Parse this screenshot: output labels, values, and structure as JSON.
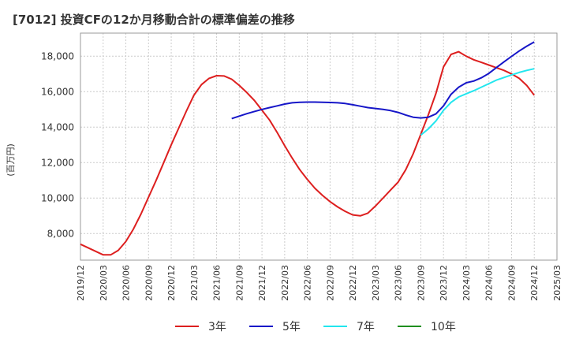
{
  "chart_data": {
    "type": "line",
    "title": "[7012]  投資CFの12か月移動合計の標準偏差の推移",
    "xlabel": "",
    "ylabel": "(百万円)",
    "ylim": [
      6500,
      19300
    ],
    "yticks": [
      8000,
      10000,
      12000,
      14000,
      16000,
      18000
    ],
    "ytick_labels": [
      "8,000",
      "10,000",
      "12,000",
      "14,000",
      "16,000",
      "18,000"
    ],
    "xticks": [
      "2019/12",
      "2020/03",
      "2020/06",
      "2020/09",
      "2020/12",
      "2021/03",
      "2021/06",
      "2021/09",
      "2021/12",
      "2022/03",
      "2022/06",
      "2022/09",
      "2022/12",
      "2023/03",
      "2023/06",
      "2023/09",
      "2023/12",
      "2024/03",
      "2024/06",
      "2024/09",
      "2024/12",
      "2025/03"
    ],
    "grid": true,
    "legend_position": "bottom",
    "series": [
      {
        "name": "3年",
        "color": "#dd1f1f",
        "x": [
          "2019/12",
          "2020/01",
          "2020/02",
          "2020/03",
          "2020/04",
          "2020/05",
          "2020/06",
          "2020/07",
          "2020/08",
          "2020/09",
          "2020/10",
          "2020/11",
          "2020/12",
          "2021/01",
          "2021/02",
          "2021/03",
          "2021/04",
          "2021/05",
          "2021/06",
          "2021/07",
          "2021/08",
          "2021/09",
          "2021/10",
          "2021/11",
          "2021/12",
          "2022/01",
          "2022/02",
          "2022/03",
          "2022/04",
          "2022/05",
          "2022/06",
          "2022/07",
          "2022/08",
          "2022/09",
          "2022/10",
          "2022/11",
          "2022/12",
          "2023/01",
          "2023/02",
          "2023/03",
          "2023/04",
          "2023/05",
          "2023/06",
          "2023/07",
          "2023/08",
          "2023/09",
          "2023/10",
          "2023/11",
          "2023/12",
          "2024/01",
          "2024/02",
          "2024/03",
          "2024/04",
          "2024/05",
          "2024/06",
          "2024/07",
          "2024/08",
          "2024/09",
          "2024/10",
          "2024/11",
          "2024/12"
        ],
        "values": [
          7400,
          7200,
          7000,
          6800,
          6800,
          7050,
          7550,
          8250,
          9100,
          10050,
          11000,
          12000,
          13000,
          13950,
          14900,
          15800,
          16400,
          16750,
          16900,
          16880,
          16700,
          16350,
          15950,
          15500,
          14950,
          14400,
          13700,
          12950,
          12250,
          11600,
          11050,
          10550,
          10150,
          9800,
          9500,
          9250,
          9050,
          9000,
          9150,
          9550,
          10000,
          10450,
          10900,
          11600,
          12500,
          13600,
          14700,
          15900,
          17400,
          18100,
          18250,
          18000,
          17800,
          17650,
          17500,
          17350,
          17200,
          17000,
          16750,
          16350,
          15800
        ]
      },
      {
        "name": "5年",
        "color": "#1616c8",
        "x": [
          "2021/08",
          "2021/09",
          "2021/10",
          "2021/11",
          "2021/12",
          "2022/01",
          "2022/02",
          "2022/03",
          "2022/04",
          "2022/05",
          "2022/06",
          "2022/07",
          "2022/08",
          "2022/09",
          "2022/10",
          "2022/11",
          "2022/12",
          "2023/01",
          "2023/02",
          "2023/03",
          "2023/04",
          "2023/05",
          "2023/06",
          "2023/07",
          "2023/08",
          "2023/09",
          "2023/10",
          "2023/11",
          "2023/12",
          "2024/01",
          "2024/02",
          "2024/03",
          "2024/04",
          "2024/05",
          "2024/06",
          "2024/07",
          "2024/08",
          "2024/09",
          "2024/10",
          "2024/11",
          "2024/12"
        ],
        "values": [
          14480,
          14620,
          14760,
          14880,
          15000,
          15100,
          15200,
          15300,
          15370,
          15400,
          15410,
          15410,
          15400,
          15390,
          15370,
          15330,
          15260,
          15180,
          15100,
          15050,
          15000,
          14930,
          14830,
          14680,
          14560,
          14520,
          14560,
          14750,
          15200,
          15850,
          16250,
          16500,
          16600,
          16780,
          17030,
          17360,
          17680,
          17990,
          18290,
          18560,
          18800
        ]
      },
      {
        "name": "7年",
        "color": "#22e6ee",
        "x": [
          "2023/09",
          "2023/10",
          "2023/11",
          "2023/12",
          "2024/01",
          "2024/02",
          "2024/03",
          "2024/04",
          "2024/05",
          "2024/06",
          "2024/07",
          "2024/08",
          "2024/09",
          "2024/10",
          "2024/11",
          "2024/12"
        ],
        "values": [
          13550,
          13900,
          14350,
          14950,
          15400,
          15700,
          15880,
          16050,
          16250,
          16450,
          16650,
          16800,
          16940,
          17080,
          17200,
          17290
        ]
      },
      {
        "name": "10年",
        "color": "#1f8f1f",
        "x": [],
        "values": []
      }
    ]
  }
}
